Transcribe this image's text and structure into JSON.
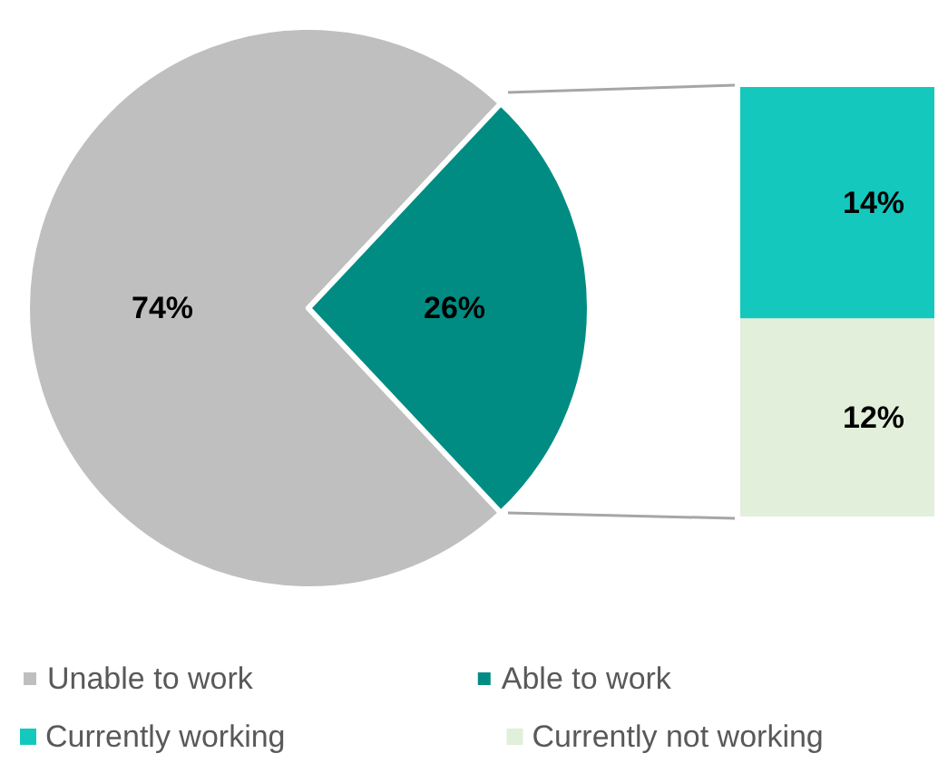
{
  "chart_data": [
    {
      "type": "pie",
      "categories": [
        "Unable to work",
        "Able to work"
      ],
      "values": [
        74,
        26
      ],
      "colors": [
        "#bfbfbf",
        "#008c82"
      ],
      "value_labels": [
        "74%",
        "26%"
      ],
      "legend": "bottom"
    },
    {
      "type": "bar",
      "stacked": true,
      "categories": [
        null
      ],
      "legend": "bottom",
      "series": [
        {
          "name": "Currently not working",
          "color": "#e2efda",
          "values": [
            12
          ],
          "value_labels": [
            "12%"
          ]
        },
        {
          "name": "Currently working",
          "color": "#14c8be",
          "values": [
            14
          ],
          "value_labels": [
            "14%"
          ]
        }
      ]
    }
  ]
}
